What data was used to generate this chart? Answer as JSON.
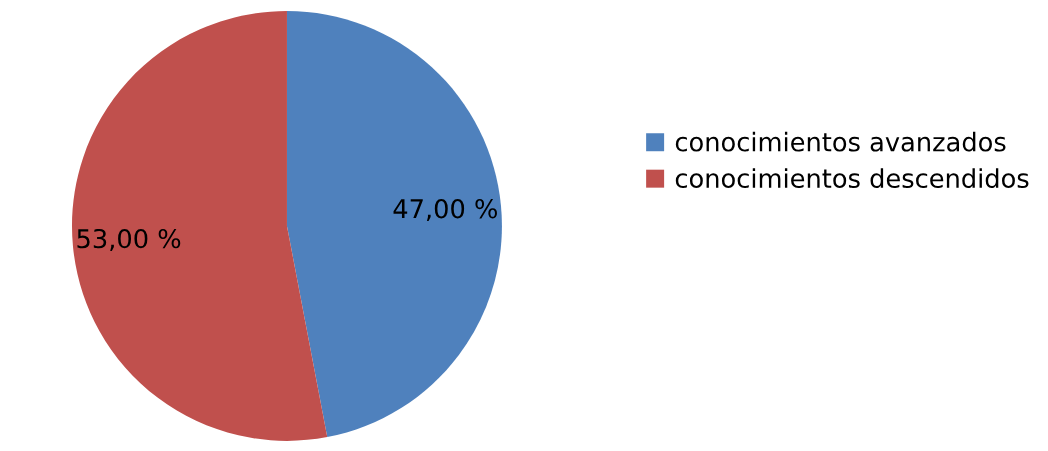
{
  "chart_data": {
    "type": "pie",
    "categories": [
      "conocimientos avanzados",
      "conocimientos descendidos"
    ],
    "values": [
      47,
      53
    ],
    "colors": [
      "#4f81bd",
      "#c0504d"
    ],
    "value_labels": [
      "47,00 %",
      "53,00 %"
    ],
    "legend": "right"
  }
}
